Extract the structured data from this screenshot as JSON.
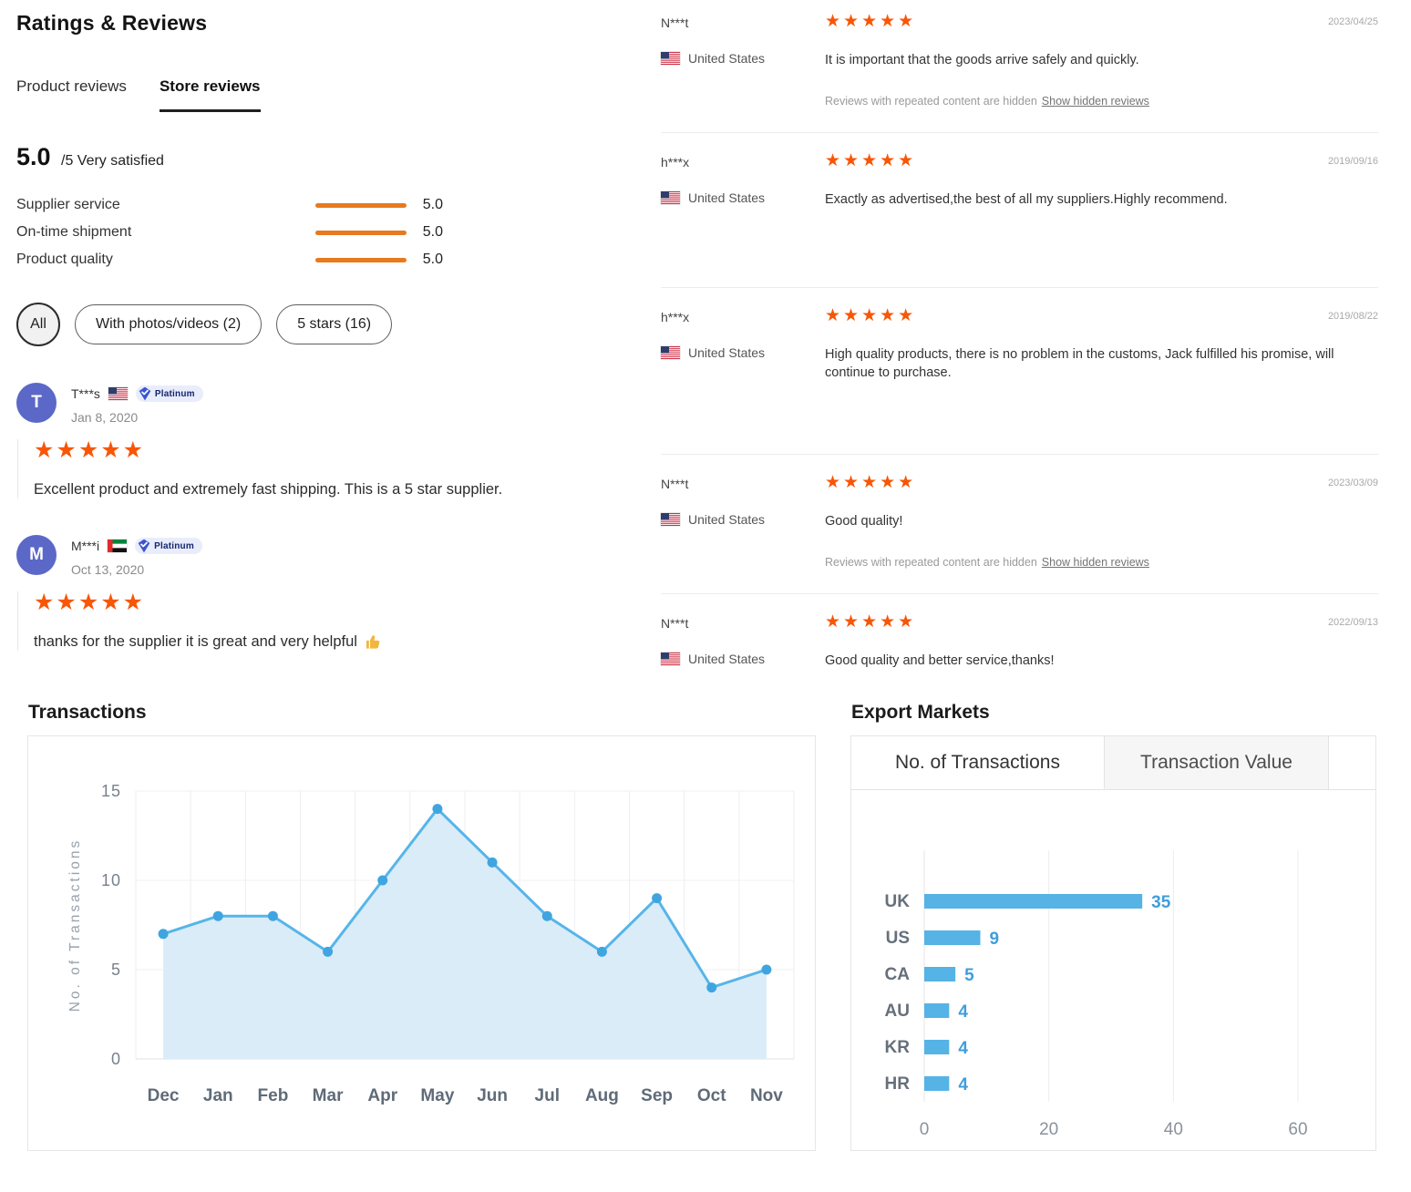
{
  "page": {
    "title": "Ratings & Reviews"
  },
  "tabs": {
    "product": "Product reviews",
    "store": "Store reviews"
  },
  "summary": {
    "score": "5.0",
    "score_suffix": "/5 Very satisfied",
    "metrics": [
      {
        "label": "Supplier service",
        "value": "5.0"
      },
      {
        "label": "On-time shipment",
        "value": "5.0"
      },
      {
        "label": "Product quality",
        "value": "5.0"
      }
    ]
  },
  "filters": {
    "all": "All",
    "photos": "With photos/videos (2)",
    "five_stars": "5 stars (16)"
  },
  "hidden": {
    "note": "Reviews with repeated content are hidden",
    "link": "Show hidden reviews"
  },
  "left_reviews": [
    {
      "initial": "T",
      "name": "T***s",
      "flag": "us",
      "badge": "Platinum",
      "date": "Jan 8, 2020",
      "stars": "★★★★★",
      "text": "Excellent product and extremely fast shipping. This is a 5 star supplier."
    },
    {
      "initial": "M",
      "name": "M***i",
      "flag": "ae",
      "badge": "Platinum",
      "date": "Oct 13, 2020",
      "stars": "★★★★★",
      "text": "thanks for the supplier it is great and very helpful",
      "emoji": "👍"
    }
  ],
  "right_reviews": [
    {
      "name": "N***t",
      "country": "United States",
      "flag": "us",
      "stars": "★★★★★",
      "date": "2023/04/25",
      "text": "It is important that the goods arrive safely and quickly.",
      "has_hidden_note": true
    },
    {
      "name": "h***x",
      "country": "United States",
      "flag": "us",
      "stars": "★★★★★",
      "date": "2019/09/16",
      "text": "Exactly as advertised,the best of all my suppliers.Highly recommend."
    },
    {
      "name": "h***x",
      "country": "United States",
      "flag": "us",
      "stars": "★★★★★",
      "date": "2019/08/22",
      "text": "High quality products, there is no problem in the customs, Jack fulfilled his promise, will continue to purchase."
    },
    {
      "name": "N***t",
      "country": "United States",
      "flag": "us",
      "stars": "★★★★★",
      "date": "2023/03/09",
      "text": "Good quality!",
      "has_hidden_note": true
    },
    {
      "name": "N***t",
      "country": "United States",
      "flag": "us",
      "stars": "★★★★★",
      "date": "2022/09/13",
      "text": "Good quality and better service,thanks!"
    }
  ],
  "colors": {
    "star": "#f85606",
    "rating_bar": "#e8791e",
    "avatar": "#5b68c8",
    "chart_line": "#56b5e9",
    "chart_fill": "#daecf8",
    "chart_marker": "#3fa5e0",
    "chart_bar": "#55b3e6",
    "chart_value_label": "#3f9edd"
  },
  "chart_data": [
    {
      "type": "area",
      "title": "Transactions",
      "ylabel": "No. of Transactions",
      "categories": [
        "Dec",
        "Jan",
        "Feb",
        "Mar",
        "Apr",
        "May",
        "Jun",
        "Jul",
        "Aug",
        "Sep",
        "Oct",
        "Nov"
      ],
      "values": [
        7,
        8,
        8,
        6,
        10,
        14,
        11,
        8,
        6,
        9,
        4,
        5
      ],
      "ylim": [
        0,
        15
      ],
      "yticks": [
        0,
        5,
        10,
        15
      ],
      "grid": true,
      "legend": "none"
    },
    {
      "type": "bar",
      "title": "Export Markets",
      "orientation": "horizontal",
      "tabs": [
        {
          "label": "No. of Transactions",
          "active": true
        },
        {
          "label": "Transaction Value",
          "active": false
        }
      ],
      "categories": [
        "UK",
        "US",
        "CA",
        "AU",
        "KR",
        "HR"
      ],
      "values": [
        35,
        9,
        5,
        4,
        4,
        4
      ],
      "xticks": [
        0,
        20,
        40,
        60
      ],
      "xlim": [
        0,
        60
      ],
      "grid": true
    }
  ]
}
